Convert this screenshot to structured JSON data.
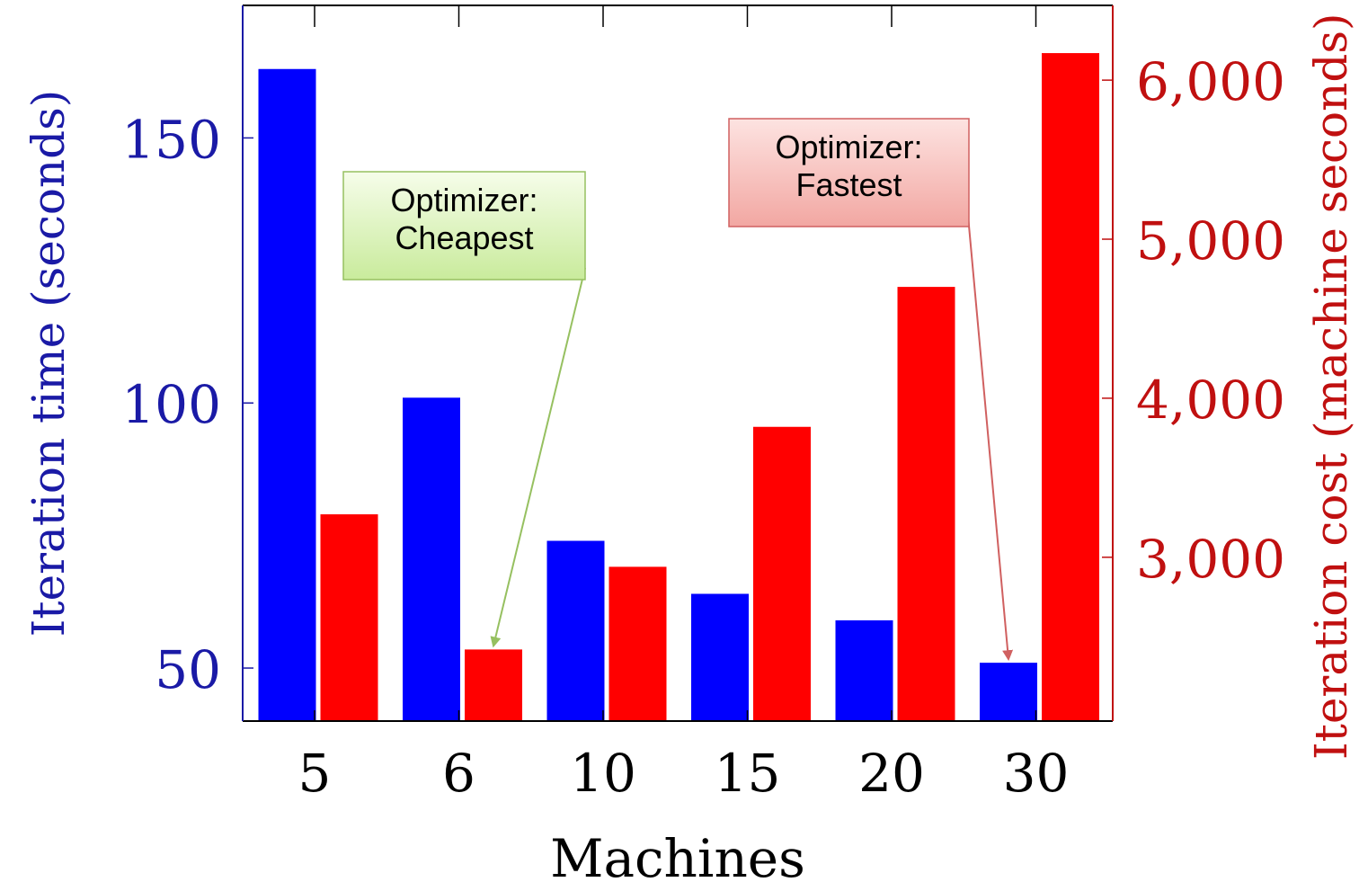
{
  "chart_data": {
    "type": "bar",
    "categories": [
      "5",
      "6",
      "10",
      "15",
      "20",
      "30"
    ],
    "xlabel": "Machines",
    "series": [
      {
        "axis": "left",
        "color": "#0000ff",
        "values": [
          163,
          101,
          74,
          64,
          59,
          51
        ]
      },
      {
        "axis": "right",
        "color": "#ff0000",
        "values": [
          3270,
          2420,
          2940,
          3820,
          4700,
          6170
        ]
      }
    ],
    "left_axis": {
      "label": "Iteration time (seconds)",
      "color": "#1a1aa6",
      "ylim": [
        40,
        175
      ],
      "ticks": [
        50,
        100,
        150
      ],
      "tick_labels": [
        "50",
        "100",
        "150"
      ]
    },
    "right_axis": {
      "label": "Iteration cost (machine seconds)",
      "color": "#c01010",
      "ylim": [
        1970,
        6470
      ],
      "ticks": [
        3000,
        4000,
        5000,
        6000
      ],
      "tick_labels": [
        "3,000",
        "4,000",
        "5,000",
        "6,000"
      ]
    },
    "annotations": [
      {
        "lines": [
          "Optimizer:",
          "Cheapest"
        ],
        "target_category": "6",
        "target_series": 1,
        "fill": "#dff5c0",
        "stroke": "#96c060"
      },
      {
        "lines": [
          "Optimizer:",
          "Fastest"
        ],
        "target_category": "30",
        "target_series": 0,
        "fill": "#f6c4c0",
        "stroke": "#d06060"
      }
    ],
    "grid": false,
    "legend": "none"
  }
}
